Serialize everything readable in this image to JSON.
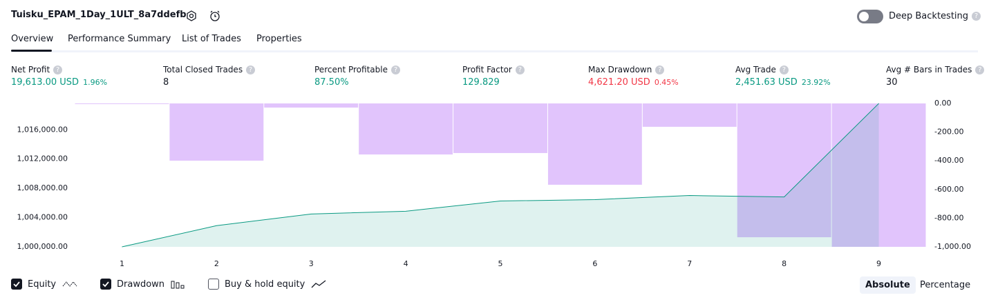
{
  "header": {
    "title": "Tuisku_EPAM_1Day_1ULT_8a7ddefb",
    "toggle_label": "Deep Backtesting"
  },
  "tabs": [
    "Overview",
    "Performance Summary",
    "List of Trades",
    "Properties"
  ],
  "metrics": [
    {
      "label": "Net Profit",
      "value": "19,613.00 USD",
      "percent": "1.96%"
    },
    {
      "label": "Total Closed Trades",
      "value": "8"
    },
    {
      "label": "Percent Profitable",
      "value": "87.50%"
    },
    {
      "label": "Profit Factor",
      "value": "129.829"
    },
    {
      "label": "Max Drawdown",
      "value": "4,621.20 USD",
      "percent": "0.45%"
    },
    {
      "label": "Avg Trade",
      "value": "2,451.63 USD",
      "percent": "23.92%"
    },
    {
      "label": "Avg # Bars in Trades",
      "value": "30"
    }
  ],
  "chart_data": {
    "type": "bar_line",
    "x": [
      1,
      2,
      3,
      4,
      5,
      6,
      7,
      8,
      9
    ],
    "xlim": [
      0.5,
      9.5
    ],
    "xticks": [
      1,
      2,
      3,
      4,
      5,
      6,
      7,
      8,
      9
    ],
    "ylim": [
      1000000,
      1019613
    ],
    "yticks": [
      {
        "value": 1000000,
        "label": "1,000,000.00"
      },
      {
        "value": 1004000,
        "label": "1,004,000.00"
      },
      {
        "value": 1008000,
        "label": "1,008,000.00"
      },
      {
        "value": 1012000,
        "label": "1,012,000.00"
      },
      {
        "value": 1016000,
        "label": "1,016,000.00"
      }
    ],
    "y2lim": [
      -1000,
      0
    ],
    "y2ticks": [
      {
        "value": 0,
        "label": "0.00"
      },
      {
        "value": -200,
        "label": "-200.00"
      },
      {
        "value": -400,
        "label": "-400.00"
      },
      {
        "value": -600,
        "label": "-600.00"
      },
      {
        "value": -800,
        "label": "-800.00"
      },
      {
        "value": -1000,
        "label": "-1,000.00"
      }
    ],
    "series": [
      {
        "name": "Equity",
        "color": "#089981",
        "values": [
          1000000,
          1002900,
          1004490,
          1004870,
          1006270,
          1006460,
          1007020,
          1006830,
          1019613
        ]
      },
      {
        "name": "Drawdown",
        "color": "#e1c4fc",
        "axis": "y2",
        "values": [
          -3,
          -399,
          -29,
          -356,
          -346,
          -567,
          -163,
          -933,
          -1000
        ]
      }
    ],
    "inactive_series": [
      "Buy & hold equity"
    ]
  },
  "scale_buttons": [
    "Absolute",
    "Percentage"
  ]
}
